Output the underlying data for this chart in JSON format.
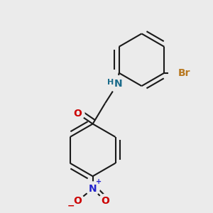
{
  "background_color": "#ebebeb",
  "bond_color": "#1a1a1a",
  "bond_width": 1.5,
  "atom_colors": {
    "O": "#cc0000",
    "N_amine": "#1a6b8a",
    "H": "#1a6b8a",
    "N_nitro": "#2222cc",
    "O_nitro": "#cc0000",
    "Br": "#b87820"
  },
  "font_size": 10,
  "font_size_small": 8,
  "font_size_super": 7
}
